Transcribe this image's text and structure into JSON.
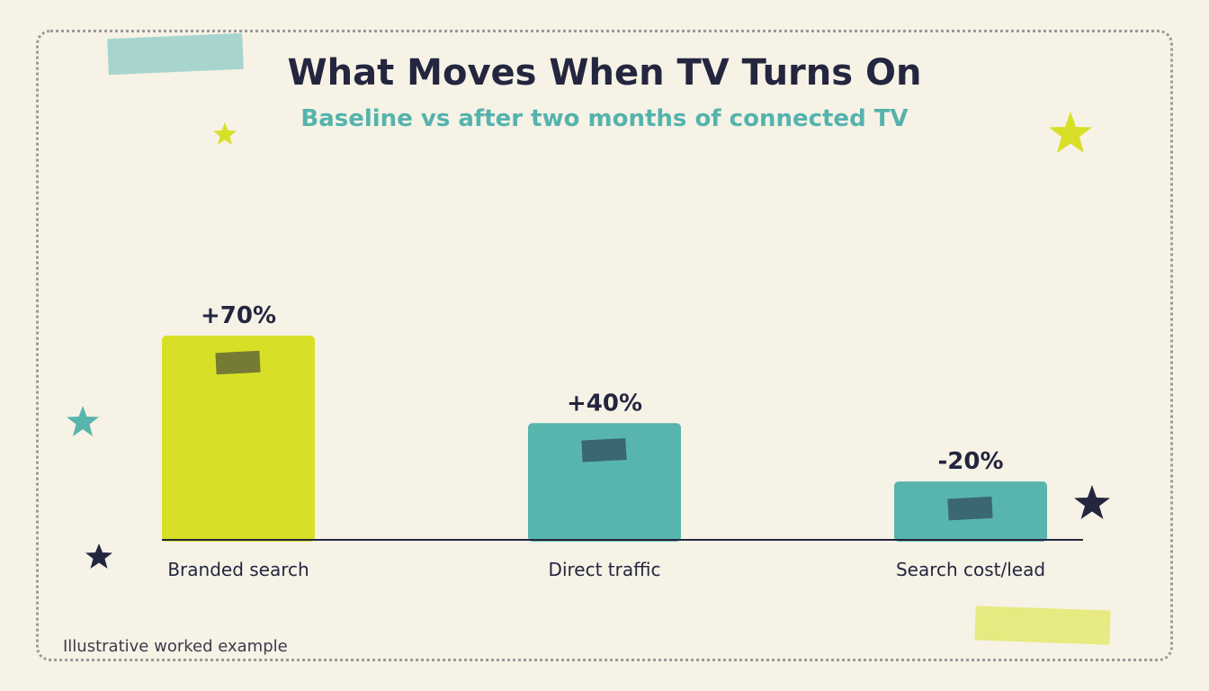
{
  "title": "What Moves When TV Turns On",
  "subtitle": "Baseline vs after two months of connected TV",
  "footnote": "Illustrative worked example",
  "colors": {
    "background": "#f6f2e6",
    "ink": "#24263f",
    "accent_lime": "#d7e026",
    "accent_teal": "#58b5ad"
  },
  "chart_data": {
    "type": "bar",
    "categories": [
      "Branded search",
      "Direct traffic",
      "Search cost/lead"
    ],
    "values": [
      70,
      40,
      -20
    ],
    "value_labels": [
      "+70%",
      "+40%",
      "-20%"
    ],
    "bar_colors": [
      "#d7e026",
      "#58b5ad",
      "#58b5ad"
    ],
    "grid": false,
    "legend": "none"
  }
}
